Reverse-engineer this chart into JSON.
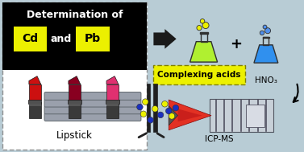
{
  "bg_color": "#b8ccd5",
  "fig_width": 3.77,
  "fig_height": 1.89,
  "title": "Determination of",
  "cd_label": "Cd",
  "pb_label": "Pb",
  "and_label": "and",
  "lipstick_label": "Lipstick",
  "complexing_label": "Complexing acids",
  "hno3_label": "HNO₃",
  "icpms_label": "ICP-MS",
  "plus_label": "+",
  "box_bg": "#000000",
  "highlight_yellow": "#ecf000",
  "flask1_color": "#b0f030",
  "flask2_color": "#3090ee",
  "flask_line": "#303030",
  "lipstick_colors": [
    "#cc1010",
    "#880020",
    "#e03070"
  ],
  "arrow_color": "#1a1a1a",
  "dotted_border": "#909090",
  "plasma_color": "#e82010",
  "tube_color": "#9aa0ac",
  "tube_border": "#60686e"
}
